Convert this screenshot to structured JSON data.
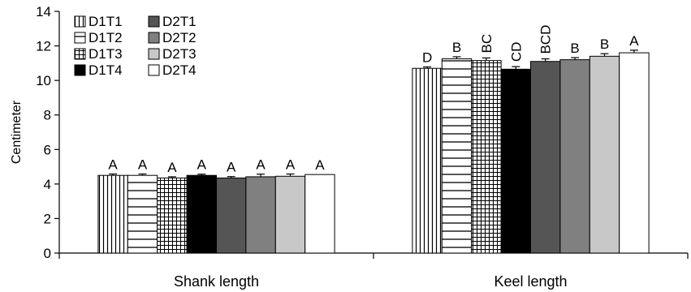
{
  "chart_data": {
    "type": "bar",
    "categories": [
      "Shank length",
      "Keel length"
    ],
    "ylabel": "Centimeter",
    "xlabel": "",
    "ylim": [
      0,
      14
    ],
    "yticks": [
      0,
      2,
      4,
      6,
      8,
      10,
      12,
      14
    ],
    "grid": false,
    "legend_position": "top-left",
    "series": [
      {
        "name": "D1T1",
        "pattern": "vertical-lines",
        "values": [
          4.5,
          10.7
        ],
        "errors": [
          0.08,
          0.08
        ],
        "letters": [
          "A",
          "D"
        ]
      },
      {
        "name": "D1T2",
        "pattern": "horizontal-lines",
        "values": [
          4.5,
          11.25
        ],
        "errors": [
          0.08,
          0.12
        ],
        "letters": [
          "A",
          "B"
        ]
      },
      {
        "name": "D1T3",
        "pattern": "grid-lines",
        "values": [
          4.35,
          11.15
        ],
        "errors": [
          0.07,
          0.15
        ],
        "letters": [
          "A",
          "BC"
        ]
      },
      {
        "name": "D1T4",
        "color": "#000000",
        "values": [
          4.5,
          10.65
        ],
        "errors": [
          0.07,
          0.15
        ],
        "letters": [
          "A",
          "CD"
        ]
      },
      {
        "name": "D2T1",
        "color": "#555555",
        "values": [
          4.35,
          11.1
        ],
        "errors": [
          0.08,
          0.15
        ],
        "letters": [
          "A",
          "BCD"
        ]
      },
      {
        "name": "D2T2",
        "color": "#808080",
        "values": [
          4.42,
          11.2
        ],
        "errors": [
          0.15,
          0.12
        ],
        "letters": [
          "A",
          "B"
        ]
      },
      {
        "name": "D2T3",
        "color": "#c8c8c8",
        "values": [
          4.45,
          11.4
        ],
        "errors": [
          0.13,
          0.15
        ],
        "letters": [
          "A",
          "B"
        ]
      },
      {
        "name": "D2T4",
        "color": "#ffffff",
        "values": [
          4.55,
          11.6
        ],
        "errors": [
          0.0,
          0.15
        ],
        "letters": [
          "A",
          "A"
        ]
      }
    ]
  }
}
